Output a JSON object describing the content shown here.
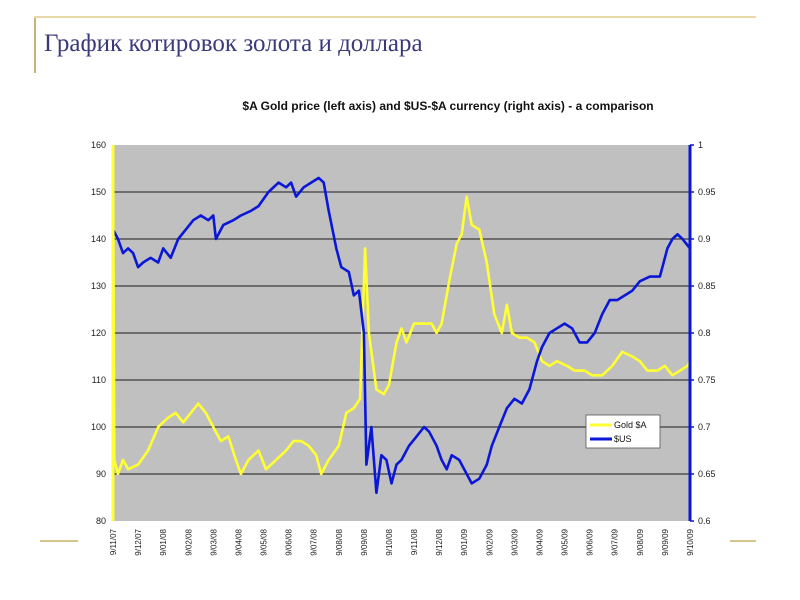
{
  "slide": {
    "title": "График котировок золота и доллара"
  },
  "colors": {
    "plot_background": "#c0c0c0",
    "gold_series": "#ffff33",
    "usd_series": "#0a17d6",
    "decoration": "#d8c58a",
    "title_text": "#3a3a7a"
  },
  "chart_data": {
    "type": "line",
    "title": "$A Gold price (left axis) and $US-$A currency (right axis) - a comparison",
    "grid": true,
    "legend_position": "bottom-right",
    "x_labels": [
      "9/11/07",
      "9/12/07",
      "9/01/08",
      "9/02/08",
      "9/03/08",
      "9/04/08",
      "9/05/08",
      "9/06/08",
      "9/07/08",
      "9/08/08",
      "9/09/08",
      "9/10/08",
      "9/11/08",
      "9/12/08",
      "9/01/09",
      "9/02/09",
      "9/03/09",
      "9/04/09",
      "9/05/09",
      "9/06/09",
      "9/07/09",
      "9/08/09",
      "9/09/09",
      "9/10/09"
    ],
    "y_left": {
      "min": 80,
      "max": 160,
      "ticks": [
        "80",
        "90",
        "100",
        "110",
        "120",
        "130",
        "140",
        "150",
        "160"
      ]
    },
    "y_right": {
      "min": 0.6,
      "max": 1.0,
      "ticks": [
        "0.6",
        "0.65",
        "0.7",
        "0.75",
        "0.8",
        "0.85",
        "0.9",
        "0.95",
        "1"
      ]
    },
    "series": [
      {
        "name": "Gold $A",
        "axis": "left",
        "points": [
          [
            0,
            160
          ],
          [
            0.05,
            93
          ],
          [
            0.2,
            90
          ],
          [
            0.4,
            93
          ],
          [
            0.6,
            91
          ],
          [
            1,
            92
          ],
          [
            1.4,
            95
          ],
          [
            1.8,
            100
          ],
          [
            2.2,
            102
          ],
          [
            2.5,
            103
          ],
          [
            2.8,
            101
          ],
          [
            3.1,
            103
          ],
          [
            3.4,
            105
          ],
          [
            3.7,
            103
          ],
          [
            4.0,
            100
          ],
          [
            4.3,
            97
          ],
          [
            4.6,
            98
          ],
          [
            4.9,
            93
          ],
          [
            5.1,
            90
          ],
          [
            5.4,
            93
          ],
          [
            5.8,
            95
          ],
          [
            6.1,
            91
          ],
          [
            6.5,
            93
          ],
          [
            6.9,
            95
          ],
          [
            7.2,
            97
          ],
          [
            7.5,
            97
          ],
          [
            7.8,
            96
          ],
          [
            8.1,
            94
          ],
          [
            8.3,
            90
          ],
          [
            8.6,
            93
          ],
          [
            9.0,
            96
          ],
          [
            9.3,
            103
          ],
          [
            9.6,
            104
          ],
          [
            9.85,
            106
          ],
          [
            10.05,
            138
          ],
          [
            10.2,
            120
          ],
          [
            10.5,
            108
          ],
          [
            10.8,
            107
          ],
          [
            11.0,
            109
          ],
          [
            11.3,
            118
          ],
          [
            11.5,
            121
          ],
          [
            11.7,
            118
          ],
          [
            12.0,
            122
          ],
          [
            12.4,
            122
          ],
          [
            12.7,
            122
          ],
          [
            12.9,
            120
          ],
          [
            13.1,
            122
          ],
          [
            13.4,
            131
          ],
          [
            13.7,
            139
          ],
          [
            13.9,
            141
          ],
          [
            14.1,
            149
          ],
          [
            14.3,
            143
          ],
          [
            14.6,
            142
          ],
          [
            14.9,
            135
          ],
          [
            15.2,
            124
          ],
          [
            15.5,
            120
          ],
          [
            15.7,
            126
          ],
          [
            15.9,
            120
          ],
          [
            16.2,
            119
          ],
          [
            16.5,
            119
          ],
          [
            16.8,
            118
          ],
          [
            17.1,
            114
          ],
          [
            17.4,
            113
          ],
          [
            17.7,
            114
          ],
          [
            18.1,
            113
          ],
          [
            18.4,
            112
          ],
          [
            18.8,
            112
          ],
          [
            19.1,
            111
          ],
          [
            19.5,
            111
          ],
          [
            19.9,
            113
          ],
          [
            20.3,
            116
          ],
          [
            20.7,
            115
          ],
          [
            21.0,
            114
          ],
          [
            21.3,
            112
          ],
          [
            21.7,
            112
          ],
          [
            22.0,
            113
          ],
          [
            22.3,
            111
          ],
          [
            22.6,
            112
          ],
          [
            22.9,
            113
          ],
          [
            23.0,
            114
          ]
        ]
      },
      {
        "name": "$US",
        "axis": "right",
        "points": [
          [
            0,
            0.91
          ],
          [
            0.2,
            0.9
          ],
          [
            0.4,
            0.885
          ],
          [
            0.6,
            0.89
          ],
          [
            0.8,
            0.885
          ],
          [
            1.0,
            0.87
          ],
          [
            1.2,
            0.875
          ],
          [
            1.5,
            0.88
          ],
          [
            1.8,
            0.875
          ],
          [
            2.0,
            0.89
          ],
          [
            2.3,
            0.88
          ],
          [
            2.6,
            0.9
          ],
          [
            2.9,
            0.91
          ],
          [
            3.2,
            0.92
          ],
          [
            3.5,
            0.925
          ],
          [
            3.8,
            0.92
          ],
          [
            4.0,
            0.925
          ],
          [
            4.1,
            0.9
          ],
          [
            4.4,
            0.915
          ],
          [
            4.8,
            0.92
          ],
          [
            5.1,
            0.925
          ],
          [
            5.5,
            0.93
          ],
          [
            5.8,
            0.935
          ],
          [
            6.2,
            0.95
          ],
          [
            6.6,
            0.96
          ],
          [
            6.9,
            0.955
          ],
          [
            7.1,
            0.96
          ],
          [
            7.3,
            0.945
          ],
          [
            7.6,
            0.955
          ],
          [
            7.9,
            0.96
          ],
          [
            8.2,
            0.965
          ],
          [
            8.4,
            0.96
          ],
          [
            8.6,
            0.93
          ],
          [
            8.9,
            0.89
          ],
          [
            9.1,
            0.87
          ],
          [
            9.4,
            0.865
          ],
          [
            9.6,
            0.84
          ],
          [
            9.8,
            0.845
          ],
          [
            10.0,
            0.8
          ],
          [
            10.1,
            0.66
          ],
          [
            10.3,
            0.7
          ],
          [
            10.5,
            0.63
          ],
          [
            10.7,
            0.67
          ],
          [
            10.9,
            0.665
          ],
          [
            11.1,
            0.64
          ],
          [
            11.3,
            0.66
          ],
          [
            11.5,
            0.665
          ],
          [
            11.8,
            0.68
          ],
          [
            12.1,
            0.69
          ],
          [
            12.4,
            0.7
          ],
          [
            12.6,
            0.695
          ],
          [
            12.9,
            0.68
          ],
          [
            13.1,
            0.665
          ],
          [
            13.3,
            0.655
          ],
          [
            13.5,
            0.67
          ],
          [
            13.8,
            0.665
          ],
          [
            14.0,
            0.655
          ],
          [
            14.3,
            0.64
          ],
          [
            14.6,
            0.645
          ],
          [
            14.9,
            0.66
          ],
          [
            15.1,
            0.68
          ],
          [
            15.4,
            0.7
          ],
          [
            15.7,
            0.72
          ],
          [
            16.0,
            0.73
          ],
          [
            16.3,
            0.725
          ],
          [
            16.6,
            0.74
          ],
          [
            16.9,
            0.77
          ],
          [
            17.1,
            0.785
          ],
          [
            17.4,
            0.8
          ],
          [
            17.7,
            0.805
          ],
          [
            18.0,
            0.81
          ],
          [
            18.3,
            0.805
          ],
          [
            18.6,
            0.79
          ],
          [
            18.9,
            0.79
          ],
          [
            19.2,
            0.8
          ],
          [
            19.5,
            0.82
          ],
          [
            19.8,
            0.835
          ],
          [
            20.1,
            0.835
          ],
          [
            20.4,
            0.84
          ],
          [
            20.7,
            0.845
          ],
          [
            21.0,
            0.855
          ],
          [
            21.4,
            0.86
          ],
          [
            21.8,
            0.86
          ],
          [
            22.1,
            0.89
          ],
          [
            22.3,
            0.9
          ],
          [
            22.5,
            0.905
          ],
          [
            22.7,
            0.9
          ],
          [
            22.85,
            0.895
          ],
          [
            23.0,
            0.89
          ]
        ]
      }
    ]
  }
}
